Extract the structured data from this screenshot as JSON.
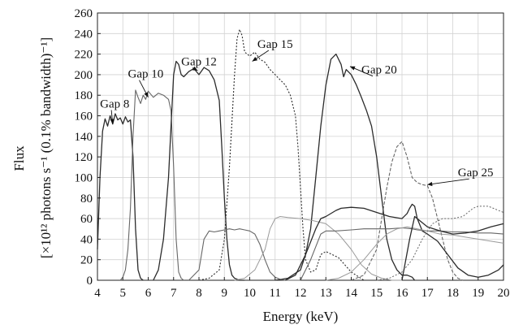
{
  "chart_data": {
    "type": "line",
    "xlabel": "Energy (keV)",
    "ylabel": "Flux",
    "ylabel_units": "[×10¹² photons s⁻¹ (0.1% bandwidth)⁻¹]",
    "xlim": [
      4,
      20
    ],
    "ylim": [
      0,
      260
    ],
    "xticks": [
      "4",
      "5",
      "6",
      "7",
      "8",
      "9",
      "10",
      "11",
      "12",
      "13",
      "14",
      "15",
      "16",
      "17",
      "18",
      "19",
      "20"
    ],
    "yticks": [
      "0",
      "20",
      "40",
      "60",
      "80",
      "100",
      "120",
      "140",
      "160",
      "180",
      "200",
      "220",
      "240",
      "260"
    ],
    "grid": true,
    "colors": {
      "dark": "#2b2b2b",
      "mid": "#666666",
      "light": "#9a9a9a"
    },
    "annotations": [
      {
        "text": "Gap  8",
        "x": 4.1,
        "y": 168,
        "target_x": 4.6,
        "target_y": 152
      },
      {
        "text": "Gap  10",
        "x": 5.2,
        "y": 197,
        "target_x": 6.0,
        "target_y": 178
      },
      {
        "text": "Gap  12",
        "x": 7.3,
        "y": 209,
        "target_x": 7.95,
        "target_y": 204
      },
      {
        "text": "Gap  15",
        "x": 10.3,
        "y": 226,
        "target_x": 10.1,
        "target_y": 213
      },
      {
        "text": "Gap  20",
        "x": 14.4,
        "y": 201,
        "target_x": 13.95,
        "target_y": 208
      },
      {
        "text": "Gap  25",
        "x": 18.2,
        "y": 101,
        "target_x": 17.0,
        "target_y": 93
      }
    ],
    "series": [
      {
        "style": "solid-dark",
        "x": [
          4.0,
          4.1,
          4.2,
          4.3,
          4.4,
          4.5,
          4.6,
          4.7,
          4.8,
          4.9,
          5.0,
          5.1,
          5.2,
          5.3,
          5.4,
          5.5,
          5.6,
          5.7,
          5.8
        ],
        "y": [
          30,
          100,
          145,
          157,
          150,
          160,
          152,
          162,
          156,
          158,
          152,
          159,
          154,
          156,
          120,
          50,
          10,
          2,
          0
        ]
      },
      {
        "style": "solid-mid",
        "x": [
          4.9,
          5.0,
          5.1,
          5.2,
          5.3,
          5.4,
          5.5,
          5.6,
          5.7,
          5.8,
          5.9,
          6.0,
          6.2,
          6.4,
          6.6,
          6.8,
          6.9,
          7.0,
          7.1,
          7.2,
          7.3,
          7.4
        ],
        "y": [
          0,
          3,
          10,
          30,
          70,
          140,
          185,
          178,
          172,
          180,
          176,
          184,
          178,
          182,
          180,
          176,
          165,
          110,
          40,
          8,
          2,
          0
        ]
      },
      {
        "style": "solid-dark",
        "x": [
          6.2,
          6.4,
          6.6,
          6.8,
          6.9,
          7.0,
          7.1,
          7.2,
          7.3,
          7.4,
          7.6,
          7.8,
          8.0,
          8.2,
          8.4,
          8.6,
          8.8,
          8.9,
          9.0,
          9.1,
          9.2,
          9.3,
          9.4,
          9.6,
          9.8
        ],
        "y": [
          0,
          10,
          40,
          100,
          150,
          200,
          213,
          210,
          200,
          198,
          203,
          206,
          200,
          207,
          204,
          195,
          175,
          130,
          80,
          40,
          15,
          5,
          2,
          0,
          0
        ]
      },
      {
        "style": "dotted-dark",
        "x": [
          8.0,
          8.4,
          8.8,
          9.0,
          9.2,
          9.4,
          9.5,
          9.6,
          9.7,
          9.8,
          10.0,
          10.2,
          10.4,
          10.6,
          10.8,
          11.0,
          11.2,
          11.4,
          11.6,
          11.8,
          11.9,
          12.0,
          12.1,
          12.2,
          12.4,
          12.6,
          12.8,
          13.0,
          13.5,
          14.0,
          14.5
        ],
        "y": [
          0,
          2,
          10,
          40,
          110,
          200,
          235,
          244,
          238,
          222,
          218,
          222,
          215,
          212,
          205,
          200,
          195,
          190,
          180,
          160,
          130,
          90,
          50,
          20,
          8,
          10,
          25,
          28,
          22,
          8,
          0
        ]
      },
      {
        "style": "solid-dark",
        "x": [
          11.0,
          11.5,
          12.0,
          12.2,
          12.4,
          12.6,
          12.8,
          13.0,
          13.2,
          13.4,
          13.6,
          13.7,
          13.8,
          14.0,
          14.2,
          14.4,
          14.6,
          14.8,
          15.0,
          15.2,
          15.4,
          15.6,
          15.8,
          16.0,
          16.2,
          16.4,
          16.5
        ],
        "y": [
          0,
          2,
          10,
          25,
          50,
          100,
          150,
          190,
          215,
          220,
          210,
          198,
          205,
          200,
          190,
          178,
          165,
          150,
          120,
          80,
          40,
          20,
          10,
          5,
          5,
          3,
          0
        ]
      },
      {
        "style": "dashed-mid",
        "x": [
          14.0,
          14.5,
          15.0,
          15.2,
          15.4,
          15.6,
          15.8,
          16.0,
          16.2,
          16.4,
          16.6,
          16.8,
          17.0,
          17.2,
          17.4,
          17.6,
          17.8,
          18.0,
          18.2,
          18.4
        ],
        "y": [
          0,
          5,
          30,
          60,
          90,
          115,
          130,
          135,
          120,
          100,
          95,
          93,
          92,
          80,
          60,
          40,
          20,
          8,
          2,
          0
        ]
      },
      {
        "style": "solid-mid",
        "x": [
          7.6,
          8.0,
          8.2,
          8.4,
          8.6,
          8.8,
          9.0,
          9.2,
          9.4,
          9.6,
          9.8,
          10.0,
          10.2,
          10.4,
          10.6,
          10.8,
          11.0,
          11.2,
          11.4,
          11.6,
          11.8,
          12.0
        ],
        "y": [
          0,
          10,
          40,
          48,
          47,
          48,
          49,
          50,
          49,
          50,
          49,
          48,
          45,
          35,
          20,
          8,
          3,
          1,
          0,
          0,
          0,
          0
        ]
      },
      {
        "style": "solid-light",
        "x": [
          9.4,
          9.8,
          10.2,
          10.6,
          10.8,
          11.0,
          11.2,
          11.5,
          12.0,
          12.5,
          13.0,
          13.5,
          14.0,
          14.4,
          14.8,
          15.2,
          15.6,
          16.0
        ],
        "y": [
          0,
          2,
          10,
          30,
          50,
          60,
          62,
          61,
          60,
          58,
          55,
          45,
          30,
          15,
          6,
          2,
          0,
          0
        ]
      },
      {
        "style": "solid-dark",
        "x": [
          11.4,
          11.8,
          12.2,
          12.6,
          12.8,
          13.0,
          13.4,
          13.6,
          14.0,
          14.5,
          15.0,
          15.5,
          16.0,
          16.2,
          16.3,
          16.4,
          16.5,
          16.6,
          16.8,
          17.0,
          17.4,
          17.8,
          18.2,
          18.6,
          19.0,
          19.4,
          19.8,
          20.0
        ],
        "y": [
          0,
          5,
          25,
          50,
          60,
          62,
          68,
          70,
          71,
          70,
          66,
          62,
          60,
          65,
          70,
          74,
          72,
          60,
          48,
          45,
          38,
          25,
          12,
          5,
          3,
          5,
          10,
          15
        ]
      },
      {
        "style": "solid-mid",
        "x": [
          12.0,
          12.4,
          12.8,
          13.0,
          13.4,
          14.0,
          14.5,
          15.0,
          15.5,
          16.0,
          16.4,
          16.6,
          17.0,
          17.5,
          18.0,
          18.5,
          19.0,
          19.5,
          20.0
        ],
        "y": [
          0,
          20,
          45,
          48,
          48,
          49,
          50,
          50,
          50,
          51,
          50,
          49,
          48,
          48,
          47,
          47,
          46,
          46,
          45
        ]
      },
      {
        "style": "solid-light",
        "x": [
          13.0,
          13.5,
          14.0,
          14.5,
          15.0,
          15.4,
          15.8,
          16.2,
          16.6,
          17.0,
          17.5,
          18.0,
          18.5,
          19.0,
          19.5,
          20.0
        ],
        "y": [
          0,
          2,
          8,
          20,
          35,
          45,
          50,
          52,
          50,
          48,
          45,
          44,
          42,
          40,
          38,
          36
        ]
      },
      {
        "style": "dotted-mid",
        "x": [
          15.0,
          15.5,
          16.0,
          16.4,
          16.8,
          17.2,
          17.6,
          18.0,
          18.4,
          18.8,
          19.0,
          19.4,
          19.8,
          20.0
        ],
        "y": [
          0,
          2,
          8,
          20,
          40,
          55,
          60,
          60,
          62,
          70,
          72,
          72,
          68,
          66
        ]
      },
      {
        "style": "solid-dark",
        "x": [
          16.0,
          16.3,
          16.5,
          16.7,
          17.0,
          17.5,
          18.0,
          18.5,
          19.0,
          19.5,
          20.0
        ],
        "y": [
          0,
          40,
          62,
          58,
          52,
          48,
          45,
          46,
          48,
          52,
          55
        ]
      }
    ]
  }
}
